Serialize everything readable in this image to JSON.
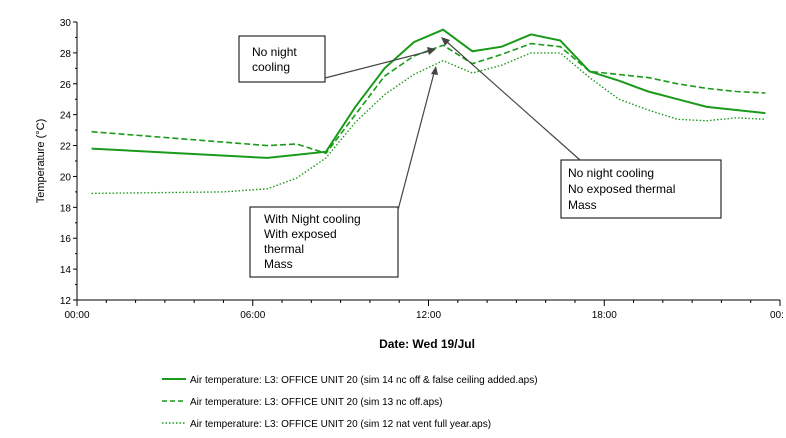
{
  "chart_data": {
    "type": "line",
    "title": "",
    "xlabel": "Date: Wed 19/Jul",
    "ylabel": "Temperature (°C)",
    "xlim": [
      0,
      24
    ],
    "ylim": [
      12,
      30
    ],
    "x_ticks": [
      {
        "value": 0,
        "label": "00:00"
      },
      {
        "value": 6,
        "label": "06:00"
      },
      {
        "value": 12,
        "label": "12:00"
      },
      {
        "value": 18,
        "label": "18:00"
      },
      {
        "value": 24,
        "label": "00:"
      }
    ],
    "y_ticks": [
      12,
      14,
      16,
      18,
      20,
      22,
      24,
      26,
      28,
      30
    ],
    "grid": false,
    "legend_position": "bottom",
    "series": [
      {
        "name": "Air temperature: L3: OFFICE UNIT 20 (sim 14 nc off & false ceiling added.aps)",
        "style": "solid",
        "color": "#1a9a1a",
        "x": [
          0.5,
          6.5,
          8.5,
          9.5,
          10.5,
          11.5,
          12.5,
          13.5,
          14.5,
          15.5,
          16.5,
          17.5,
          18.5,
          19.5,
          20.5,
          21.5,
          22.5,
          23.5
        ],
        "y": [
          21.8,
          21.2,
          21.6,
          24.5,
          27.0,
          28.7,
          29.5,
          28.1,
          28.4,
          29.2,
          28.8,
          26.8,
          26.2,
          25.5,
          25.0,
          24.5,
          24.3,
          24.1
        ]
      },
      {
        "name": "Air temperature: L3: OFFICE UNIT 20 (sim 13 nc off.aps)",
        "style": "dashed",
        "color": "#1a9a1a",
        "x": [
          0.5,
          6.5,
          7.5,
          8.5,
          9.5,
          10.5,
          11.5,
          12.5,
          13.5,
          14.5,
          15.5,
          16.5,
          17.5,
          18.5,
          19.5,
          20.5,
          21.5,
          22.5,
          23.5
        ],
        "y": [
          22.9,
          22.0,
          22.1,
          21.5,
          24.0,
          26.5,
          27.8,
          28.5,
          27.3,
          27.9,
          28.6,
          28.4,
          26.8,
          26.6,
          26.4,
          26.0,
          25.7,
          25.5,
          25.4
        ]
      },
      {
        "name": "Air temperature: L3: OFFICE UNIT 20 (sim 12 nat vent full year.aps)",
        "style": "dotted",
        "color": "#1a9a1a",
        "x": [
          0.5,
          5.0,
          6.5,
          7.5,
          8.5,
          9.5,
          10.5,
          11.5,
          12.5,
          13.5,
          14.5,
          15.5,
          16.5,
          17.5,
          18.5,
          19.5,
          20.5,
          21.5,
          22.5,
          23.5
        ],
        "y": [
          18.9,
          19.0,
          19.2,
          19.9,
          21.2,
          23.5,
          25.3,
          26.6,
          27.5,
          26.7,
          27.2,
          28.0,
          28.0,
          26.4,
          25.0,
          24.3,
          23.7,
          23.6,
          23.8,
          23.7
        ]
      }
    ],
    "annotations": [
      {
        "lines": [
          "No night",
          "cooling"
        ]
      },
      {
        "lines": [
          "No night cooling",
          "No exposed thermal",
          "Mass"
        ]
      },
      {
        "lines": [
          "With Night cooling",
          "With exposed",
          "thermal",
          "Mass"
        ]
      }
    ]
  }
}
